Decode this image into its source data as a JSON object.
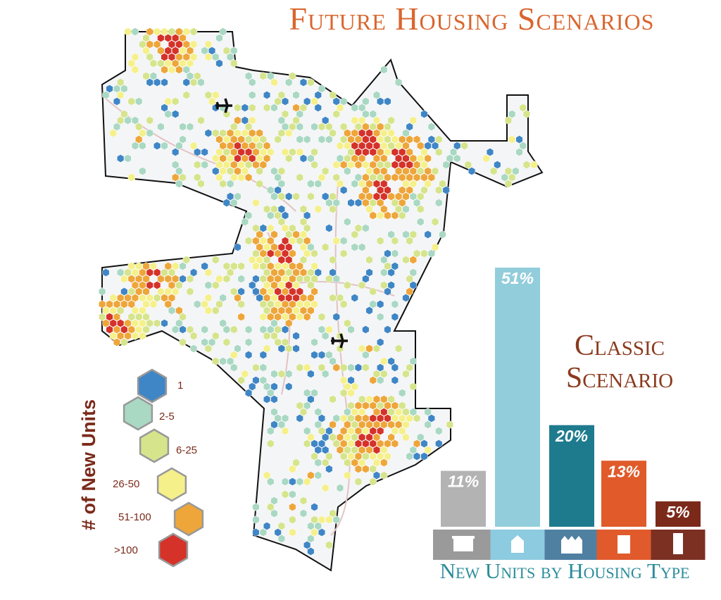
{
  "title": "Future Housing Scenarios",
  "map_legend": {
    "title": "# of New Units",
    "items": [
      {
        "label": "1",
        "color": "#3f86c6"
      },
      {
        "label": "2-5",
        "color": "#a9d8c3"
      },
      {
        "label": "6-25",
        "color": "#d6e48c"
      },
      {
        "label": "26-50",
        "color": "#f5f08a"
      },
      {
        "label": "51-100",
        "color": "#eea63a"
      },
      {
        "label": ">100",
        "color": "#d5322a"
      }
    ]
  },
  "chart_data": {
    "type": "bar",
    "title": "Classic Scenario",
    "x_label": "New Units by Housing Type",
    "values": [
      11,
      51,
      20,
      13,
      5
    ],
    "value_labels": [
      "11%",
      "51%",
      "20%",
      "13%",
      "5%"
    ],
    "colors": [
      "#b3b3b3",
      "#92cddc",
      "#1e7b8e",
      "#e05a2a",
      "#7b2a1a"
    ]
  }
}
